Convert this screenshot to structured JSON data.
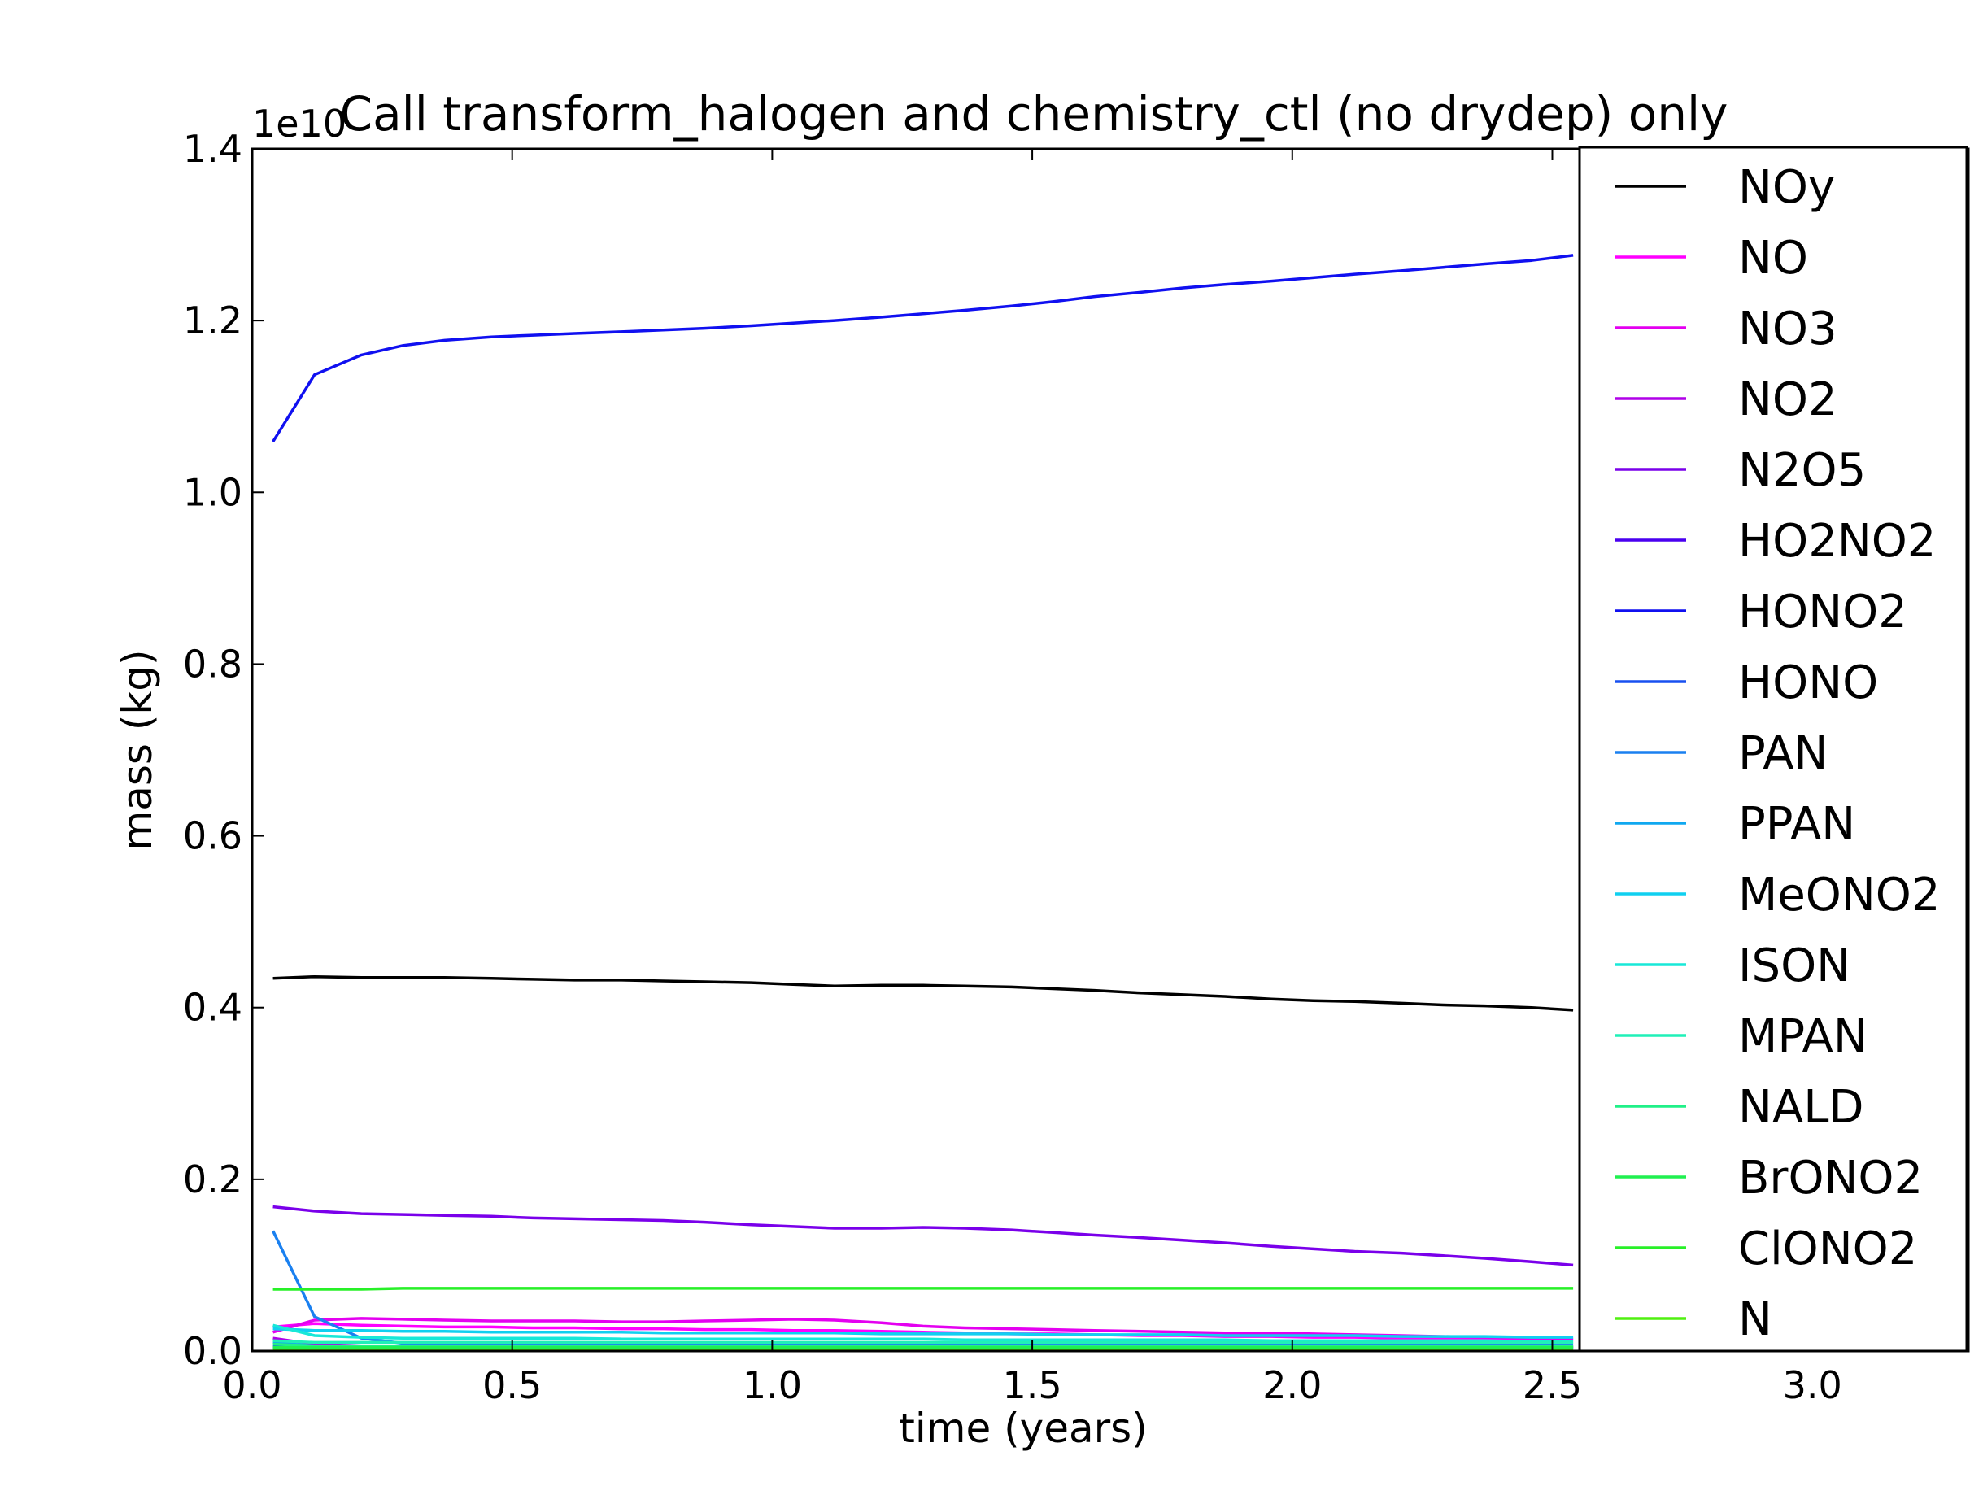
{
  "chart_data": {
    "type": "line",
    "title": "Call transform_halogen and chemistry_ctl (no drydep) only",
    "xlabel": "time (years)",
    "ylabel": "mass (kg)",
    "y_offset_label": "1e10",
    "xlim": [
      0.0,
      3.3
    ],
    "ylim": [
      0.0,
      1.4
    ],
    "xticks": [
      0.0,
      0.5,
      1.0,
      1.5,
      2.0,
      2.5,
      3.0
    ],
    "xtick_labels": [
      "0.0",
      "0.5",
      "1.0",
      "1.5",
      "2.0",
      "2.5",
      "3.0"
    ],
    "yticks": [
      0.0,
      0.2,
      0.4,
      0.6,
      0.8,
      1.0,
      1.2,
      1.4
    ],
    "ytick_labels": [
      "0.0",
      "0.2",
      "0.4",
      "0.6",
      "0.8",
      "1.0",
      "1.2",
      "1.4"
    ],
    "grid": false,
    "legend_position": "right",
    "x": [
      0.04,
      0.12,
      0.21,
      0.29,
      0.37,
      0.46,
      0.54,
      0.62,
      0.71,
      0.79,
      0.87,
      0.96,
      1.04,
      1.12,
      1.21,
      1.29,
      1.37,
      1.46,
      1.54,
      1.62,
      1.71,
      1.79,
      1.87,
      1.96,
      2.04,
      2.12,
      2.21,
      2.29,
      2.37,
      2.46,
      2.54
    ],
    "series": [
      {
        "name": "NOy",
        "color": "#000000",
        "values": [
          0.434,
          0.436,
          0.435,
          0.435,
          0.435,
          0.434,
          0.433,
          0.432,
          0.432,
          0.431,
          0.43,
          0.429,
          0.427,
          0.425,
          0.426,
          0.426,
          0.425,
          0.424,
          0.422,
          0.42,
          0.417,
          0.415,
          0.413,
          0.41,
          0.408,
          0.407,
          0.405,
          0.403,
          0.402,
          0.4,
          0.397
        ]
      },
      {
        "name": "NO",
        "color": "#ff00ff",
        "values": [
          0.028,
          0.032,
          0.03,
          0.029,
          0.028,
          0.028,
          0.027,
          0.027,
          0.026,
          0.026,
          0.025,
          0.025,
          0.024,
          0.024,
          0.023,
          0.022,
          0.021,
          0.02,
          0.02,
          0.019,
          0.018,
          0.018,
          0.017,
          0.017,
          0.016,
          0.016,
          0.015,
          0.015,
          0.014,
          0.014,
          0.013
        ]
      },
      {
        "name": "NO3",
        "color": "#e400f0",
        "values": [
          0.022,
          0.036,
          0.038,
          0.037,
          0.036,
          0.035,
          0.035,
          0.035,
          0.034,
          0.034,
          0.035,
          0.036,
          0.037,
          0.036,
          0.033,
          0.029,
          0.027,
          0.026,
          0.025,
          0.024,
          0.023,
          0.022,
          0.021,
          0.021,
          0.02,
          0.019,
          0.018,
          0.017,
          0.016,
          0.015,
          0.014
        ]
      },
      {
        "name": "NO2",
        "color": "#b000e8",
        "values": [
          0.015,
          0.008,
          0.006,
          0.006,
          0.005,
          0.005,
          0.005,
          0.005,
          0.005,
          0.005,
          0.005,
          0.005,
          0.005,
          0.005,
          0.005,
          0.005,
          0.005,
          0.005,
          0.005,
          0.005,
          0.005,
          0.005,
          0.005,
          0.005,
          0.005,
          0.005,
          0.005,
          0.005,
          0.005,
          0.005,
          0.005
        ]
      },
      {
        "name": "N2O5",
        "color": "#7a00ea",
        "values": [
          0.168,
          0.163,
          0.16,
          0.159,
          0.158,
          0.157,
          0.155,
          0.154,
          0.153,
          0.152,
          0.15,
          0.147,
          0.145,
          0.143,
          0.143,
          0.144,
          0.143,
          0.141,
          0.138,
          0.135,
          0.132,
          0.129,
          0.126,
          0.122,
          0.119,
          0.116,
          0.114,
          0.111,
          0.108,
          0.104,
          0.1
        ]
      },
      {
        "name": "HO2NO2",
        "color": "#4a00f0",
        "values": [
          0.004,
          0.003,
          0.003,
          0.003,
          0.003,
          0.003,
          0.003,
          0.003,
          0.003,
          0.003,
          0.003,
          0.003,
          0.003,
          0.003,
          0.003,
          0.003,
          0.003,
          0.003,
          0.003,
          0.003,
          0.003,
          0.003,
          0.003,
          0.003,
          0.003,
          0.003,
          0.003,
          0.003,
          0.003,
          0.003,
          0.003
        ]
      },
      {
        "name": "HONO2",
        "color": "#1010f0",
        "values": [
          1.059,
          1.137,
          1.16,
          1.171,
          1.177,
          1.181,
          1.183,
          1.185,
          1.187,
          1.189,
          1.191,
          1.194,
          1.197,
          1.2,
          1.204,
          1.208,
          1.212,
          1.217,
          1.222,
          1.228,
          1.233,
          1.238,
          1.242,
          1.246,
          1.25,
          1.254,
          1.258,
          1.262,
          1.266,
          1.27,
          1.276
        ]
      },
      {
        "name": "HONO",
        "color": "#1850f0",
        "values": [
          0.006,
          0.005,
          0.004,
          0.004,
          0.004,
          0.004,
          0.004,
          0.004,
          0.004,
          0.004,
          0.004,
          0.004,
          0.004,
          0.004,
          0.004,
          0.004,
          0.004,
          0.004,
          0.004,
          0.004,
          0.004,
          0.004,
          0.004,
          0.004,
          0.004,
          0.004,
          0.004,
          0.004,
          0.004,
          0.004,
          0.004
        ]
      },
      {
        "name": "PAN",
        "color": "#1a80f0",
        "values": [
          0.14,
          0.04,
          0.015,
          0.009,
          0.008,
          0.008,
          0.008,
          0.008,
          0.008,
          0.008,
          0.008,
          0.008,
          0.008,
          0.008,
          0.008,
          0.008,
          0.008,
          0.008,
          0.008,
          0.008,
          0.008,
          0.008,
          0.008,
          0.008,
          0.008,
          0.008,
          0.008,
          0.008,
          0.008,
          0.008,
          0.008
        ]
      },
      {
        "name": "PPAN",
        "color": "#10a8f0",
        "values": [
          0.01,
          0.006,
          0.005,
          0.005,
          0.005,
          0.005,
          0.005,
          0.005,
          0.005,
          0.005,
          0.005,
          0.005,
          0.005,
          0.005,
          0.005,
          0.005,
          0.005,
          0.005,
          0.005,
          0.005,
          0.005,
          0.005,
          0.005,
          0.005,
          0.005,
          0.005,
          0.005,
          0.005,
          0.005,
          0.005,
          0.005
        ]
      },
      {
        "name": "MeONO2",
        "color": "#10d0f0",
        "values": [
          0.026,
          0.024,
          0.024,
          0.023,
          0.023,
          0.022,
          0.022,
          0.022,
          0.022,
          0.021,
          0.021,
          0.021,
          0.021,
          0.021,
          0.02,
          0.02,
          0.02,
          0.02,
          0.019,
          0.019,
          0.019,
          0.019,
          0.018,
          0.018,
          0.018,
          0.018,
          0.017,
          0.017,
          0.017,
          0.016,
          0.016
        ]
      },
      {
        "name": "ISON",
        "color": "#18e8d8",
        "values": [
          0.03,
          0.018,
          0.016,
          0.015,
          0.015,
          0.015,
          0.015,
          0.015,
          0.014,
          0.014,
          0.014,
          0.014,
          0.014,
          0.014,
          0.014,
          0.014,
          0.013,
          0.013,
          0.013,
          0.013,
          0.013,
          0.013,
          0.013,
          0.012,
          0.012,
          0.012,
          0.012,
          0.012,
          0.012,
          0.011,
          0.011
        ]
      },
      {
        "name": "MPAN",
        "color": "#20f0b8",
        "values": [
          0.012,
          0.01,
          0.01,
          0.01,
          0.01,
          0.01,
          0.01,
          0.01,
          0.01,
          0.01,
          0.01,
          0.01,
          0.01,
          0.01,
          0.01,
          0.01,
          0.01,
          0.01,
          0.01,
          0.01,
          0.01,
          0.01,
          0.01,
          0.01,
          0.01,
          0.01,
          0.01,
          0.01,
          0.01,
          0.01,
          0.01
        ]
      },
      {
        "name": "NALD",
        "color": "#20f088",
        "values": [
          0.008,
          0.006,
          0.006,
          0.006,
          0.006,
          0.006,
          0.006,
          0.006,
          0.006,
          0.006,
          0.006,
          0.006,
          0.006,
          0.006,
          0.006,
          0.006,
          0.006,
          0.006,
          0.006,
          0.006,
          0.006,
          0.006,
          0.006,
          0.006,
          0.006,
          0.006,
          0.006,
          0.006,
          0.006,
          0.006,
          0.006
        ]
      },
      {
        "name": "BrONO2",
        "color": "#20f050",
        "values": [
          0.004,
          0.004,
          0.004,
          0.004,
          0.004,
          0.004,
          0.004,
          0.004,
          0.004,
          0.004,
          0.004,
          0.004,
          0.004,
          0.004,
          0.004,
          0.004,
          0.004,
          0.004,
          0.004,
          0.004,
          0.004,
          0.004,
          0.004,
          0.004,
          0.004,
          0.004,
          0.004,
          0.004,
          0.004,
          0.004,
          0.004
        ]
      },
      {
        "name": "ClONO2",
        "color": "#28f028",
        "values": [
          0.072,
          0.072,
          0.072,
          0.073,
          0.073,
          0.073,
          0.073,
          0.073,
          0.073,
          0.073,
          0.073,
          0.073,
          0.073,
          0.073,
          0.073,
          0.073,
          0.073,
          0.073,
          0.073,
          0.073,
          0.073,
          0.073,
          0.073,
          0.073,
          0.073,
          0.073,
          0.073,
          0.073,
          0.073,
          0.073,
          0.073
        ]
      },
      {
        "name": "N",
        "color": "#50f010",
        "values": [
          0.001,
          0.001,
          0.001,
          0.001,
          0.001,
          0.001,
          0.001,
          0.001,
          0.001,
          0.001,
          0.001,
          0.001,
          0.001,
          0.001,
          0.001,
          0.001,
          0.001,
          0.001,
          0.001,
          0.001,
          0.001,
          0.001,
          0.001,
          0.001,
          0.001,
          0.001,
          0.001,
          0.001,
          0.001,
          0.001,
          0.001
        ]
      }
    ]
  }
}
